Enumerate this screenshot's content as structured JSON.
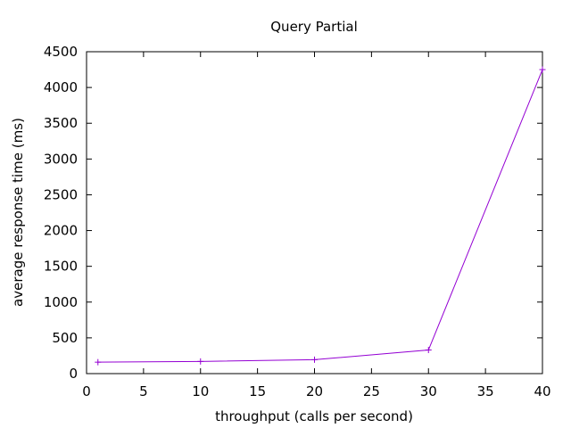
{
  "chart_data": {
    "type": "line",
    "title": "Query Partial",
    "xlabel": "throughput (calls per second)",
    "ylabel": "average response time (ms)",
    "xlim": [
      0,
      40
    ],
    "ylim": [
      0,
      4500
    ],
    "xticks": [
      0,
      5,
      10,
      15,
      20,
      25,
      30,
      35,
      40
    ],
    "yticks": [
      0,
      500,
      1000,
      1500,
      2000,
      2500,
      3000,
      3500,
      4000,
      4500
    ],
    "grid": false,
    "legend": "none",
    "marker": "plus",
    "series": [
      {
        "color": "#9400d3",
        "x": [
          1,
          10,
          20,
          30,
          40
        ],
        "y": [
          160,
          170,
          195,
          330,
          4250
        ]
      }
    ]
  }
}
